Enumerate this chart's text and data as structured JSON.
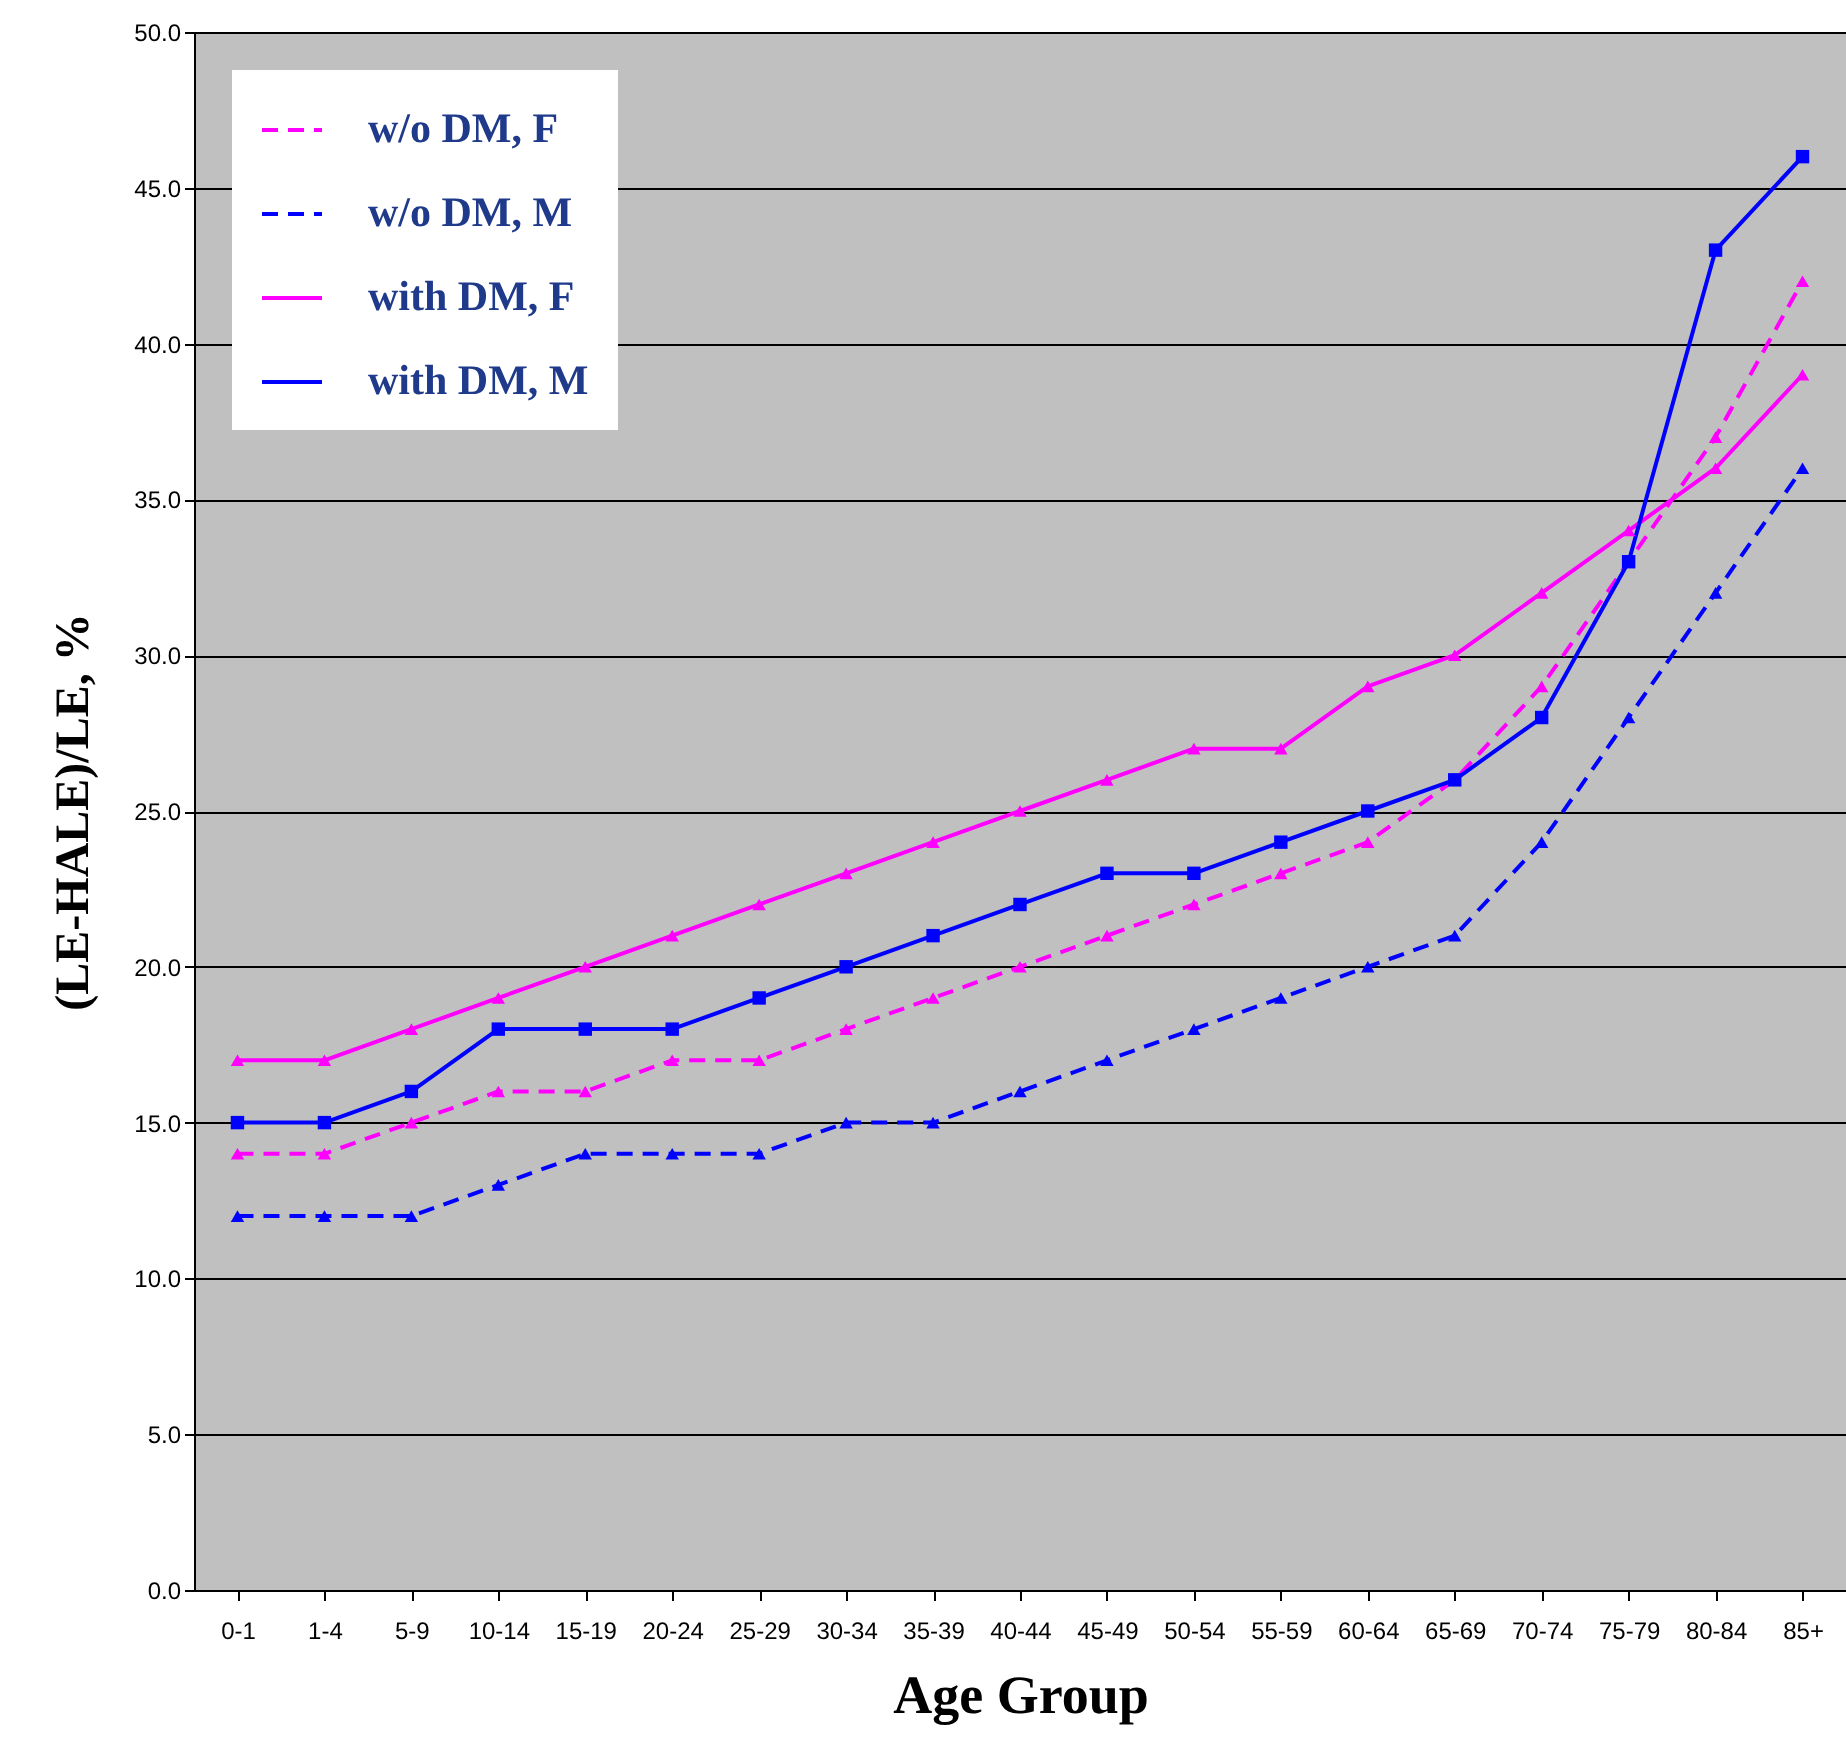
{
  "chart_data": {
    "type": "line",
    "xlabel": "Age Group",
    "ylabel": "(LE-HALE)/LE, %",
    "categories": [
      "0-1",
      "1-4",
      "5-9",
      "10-14",
      "15-19",
      "20-24",
      "25-29",
      "30-34",
      "35-39",
      "40-44",
      "45-49",
      "50-54",
      "55-59",
      "60-64",
      "65-69",
      "70-74",
      "75-79",
      "80-84",
      "85+"
    ],
    "series": [
      {
        "name": "w/o DM, F",
        "color": "#ff00ff",
        "line_style": "dashed",
        "marker": "triangle",
        "values": [
          14,
          14,
          15,
          16,
          16,
          17,
          17,
          18,
          19,
          20,
          21,
          22,
          23,
          24,
          26,
          29,
          33,
          37,
          42
        ]
      },
      {
        "name": "w/o DM, M",
        "color": "#0000ff",
        "line_style": "dashed",
        "marker": "triangle",
        "values": [
          12,
          12,
          12,
          13,
          14,
          14,
          14,
          15,
          15,
          16,
          17,
          18,
          19,
          20,
          21,
          24,
          28,
          32,
          36
        ]
      },
      {
        "name": "with DM, F",
        "color": "#ff00ff",
        "line_style": "solid",
        "marker": "triangle",
        "values": [
          17,
          17,
          18,
          19,
          20,
          21,
          22,
          23,
          24,
          25,
          26,
          27,
          27,
          29,
          30,
          32,
          34,
          36,
          39
        ]
      },
      {
        "name": "with DM, M",
        "color": "#0000ff",
        "line_style": "solid",
        "marker": "square",
        "values": [
          15,
          15,
          16,
          18,
          18,
          18,
          19,
          20,
          21,
          22,
          23,
          23,
          24,
          25,
          26,
          28,
          33,
          43,
          46
        ]
      }
    ],
    "ylim": [
      0,
      50
    ],
    "yticks": [
      {
        "value": 0,
        "label": "0.0"
      },
      {
        "value": 5,
        "label": "5.0"
      },
      {
        "value": 10,
        "label": "10.0"
      },
      {
        "value": 15,
        "label": "15.0"
      },
      {
        "value": 20,
        "label": "20.0"
      },
      {
        "value": 25,
        "label": "25.0"
      },
      {
        "value": 30,
        "label": "30.0"
      },
      {
        "value": 35,
        "label": "35.0"
      },
      {
        "value": 40,
        "label": "40.0"
      },
      {
        "value": 45,
        "label": "45.0"
      },
      {
        "value": 50,
        "label": "50.0"
      }
    ],
    "grid": "y",
    "legend": "top left"
  }
}
